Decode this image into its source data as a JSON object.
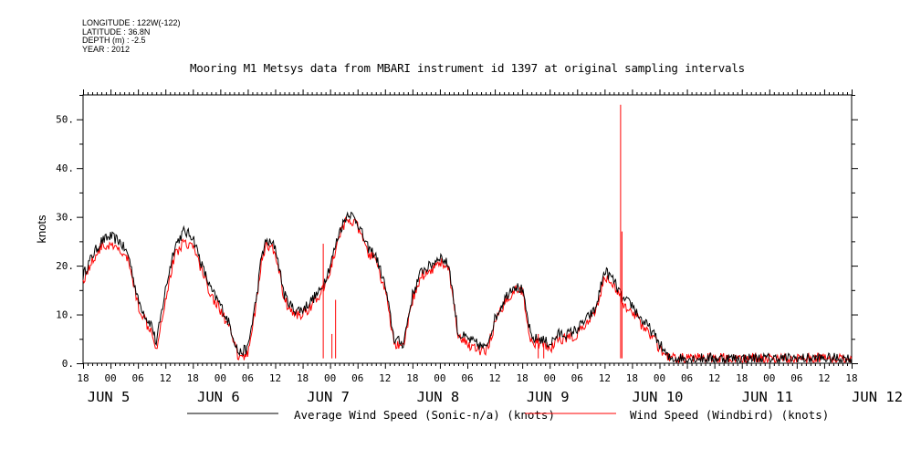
{
  "meta": {
    "lines": [
      "LONGITUDE : 122W(-122)",
      "LATITUDE : 36.8N",
      "DEPTH (m) : -2.5",
      "YEAR : 2012"
    ]
  },
  "chart_data": {
    "type": "line",
    "title": "Mooring M1 Metsys data from MBARI instrument id 1397 at original sampling intervals",
    "ylabel": "knots",
    "xlabel": "",
    "ylim": [
      0,
      55
    ],
    "xlim_hours": [
      0,
      168
    ],
    "x_unit": "hours since JUN 4 18:00 (2012)",
    "yticks": [
      "0.",
      "10.",
      "20.",
      "30.",
      "40.",
      "50."
    ],
    "ytick_values": [
      0,
      10,
      20,
      30,
      40,
      50
    ],
    "hour_ticks": [
      "18",
      "00",
      "06",
      "12",
      "18",
      "00",
      "06",
      "12",
      "18",
      "00",
      "06",
      "12",
      "18",
      "00",
      "06",
      "12",
      "18",
      "00",
      "06",
      "12",
      "18",
      "00",
      "06",
      "12",
      "18",
      "00",
      "06",
      "12",
      "18"
    ],
    "day_labels": [
      {
        "text": "JUN  5",
        "hour": 6
      },
      {
        "text": "JUN  6",
        "hour": 30
      },
      {
        "text": "JUN  7",
        "hour": 54
      },
      {
        "text": "JUN  8",
        "hour": 78
      },
      {
        "text": "JUN  9",
        "hour": 102
      },
      {
        "text": "JUN 10",
        "hour": 126
      },
      {
        "text": "JUN 11",
        "hour": 150
      },
      {
        "text": "JUN 12",
        "hour": 174
      }
    ],
    "grid": false,
    "legend_position": "bottom",
    "series": [
      {
        "name": "Average Wind Speed (Sonic-n/a) (knots)",
        "color": "#000000",
        "x": [
          0,
          2,
          4,
          6,
          8,
          10,
          12,
          14,
          15,
          16,
          18,
          20,
          22,
          24,
          26,
          28,
          30,
          32,
          34,
          36,
          38,
          39,
          40,
          42,
          44,
          46,
          48,
          50,
          52,
          54,
          56,
          58,
          60,
          62,
          64,
          66,
          68,
          70,
          72,
          74,
          76,
          78,
          80,
          82,
          84,
          86,
          88,
          90,
          92,
          94,
          96,
          98,
          100,
          102,
          104,
          106,
          108,
          110,
          112,
          114,
          116,
          118,
          120,
          122,
          124,
          126,
          128,
          130,
          132,
          134,
          136,
          138,
          140,
          142,
          144,
          146,
          148,
          150,
          152,
          154,
          156,
          158,
          160,
          162,
          164,
          166,
          168
        ],
        "y": [
          18,
          22,
          25,
          26,
          25,
          22,
          13,
          9,
          8,
          4,
          15,
          24,
          27,
          26,
          20,
          15,
          12,
          8,
          2,
          3,
          14,
          22,
          25,
          24,
          14,
          11,
          11,
          13,
          15,
          20,
          27,
          31,
          29,
          24,
          22,
          16,
          5,
          4,
          14,
          19,
          20,
          22,
          20,
          6,
          5,
          4,
          3,
          9,
          13,
          16,
          15,
          5,
          5,
          4,
          6,
          6,
          7,
          9,
          11,
          19,
          17,
          13,
          12,
          9,
          7,
          4,
          1,
          1,
          1,
          1,
          1,
          1,
          1,
          1,
          1,
          1,
          1,
          1,
          1,
          1,
          1,
          1,
          1,
          1,
          1,
          1,
          1
        ]
      },
      {
        "name": "Wind Speed (Windbird) (knots)",
        "color": "#ff0000",
        "x": [
          0,
          2,
          4,
          6,
          8,
          10,
          12,
          14,
          15,
          16,
          18,
          20,
          22,
          24,
          26,
          28,
          30,
          32,
          34,
          36,
          38,
          39,
          40,
          42,
          44,
          46,
          48,
          50,
          52,
          54,
          56,
          58,
          60,
          62,
          64,
          66,
          68,
          70,
          72,
          74,
          76,
          78,
          80,
          82,
          84,
          86,
          88,
          90,
          92,
          94,
          96,
          98,
          100,
          102,
          104,
          106,
          108,
          110,
          112,
          114,
          116,
          118,
          120,
          122,
          124,
          126,
          128,
          130,
          132,
          134,
          136,
          138,
          140,
          142,
          144,
          146,
          148,
          150,
          152,
          154,
          156,
          158,
          160,
          162,
          164,
          166,
          168
        ],
        "y": [
          17,
          21,
          24,
          24,
          23,
          21,
          12,
          8,
          7,
          3,
          13,
          22,
          25,
          24,
          19,
          14,
          11,
          7,
          1,
          2,
          13,
          21,
          24,
          23,
          13,
          10,
          10,
          12,
          14,
          19,
          26,
          30,
          28,
          23,
          21,
          15,
          4,
          3,
          13,
          18,
          19,
          21,
          19,
          5,
          4,
          3,
          2,
          8,
          12,
          15,
          15,
          4,
          4,
          3,
          5,
          5,
          6,
          8,
          10,
          18,
          16,
          12,
          11,
          8,
          6,
          3,
          1,
          1,
          1,
          1,
          1,
          1,
          1,
          1,
          1,
          1,
          1,
          1,
          1,
          1,
          1,
          1,
          1,
          1,
          1,
          1,
          1
        ]
      }
    ]
  }
}
